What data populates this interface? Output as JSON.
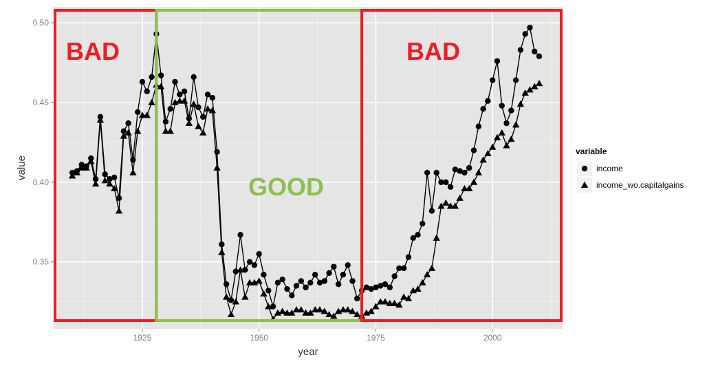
{
  "chart_data": {
    "type": "line",
    "xlabel": "year",
    "ylabel": "value",
    "xlim": [
      1906,
      2015
    ],
    "ylim": [
      0.308,
      0.51
    ],
    "x_ticks": [
      1925,
      1950,
      1975,
      2000
    ],
    "x_tick_labels": [
      "1925",
      "1950",
      "1975",
      "2000"
    ],
    "y_ticks": [
      0.35,
      0.4,
      0.45,
      0.5
    ],
    "y_tick_labels": [
      "0.35",
      "0.40",
      "0.45",
      "0.50"
    ],
    "grid": true,
    "legend": {
      "title": "variable",
      "placement": "right",
      "entries": [
        "income",
        "income_wo.capitalgains"
      ]
    },
    "colors": {
      "panel": "#e5e5e5",
      "grid": "#ffffff",
      "series": "#000000",
      "bad": "#ee1c24",
      "good": "#8dc04e"
    },
    "regions": [
      {
        "label": "BAD",
        "x_start": 1906,
        "x_end": 1928,
        "color": "#ee1c24"
      },
      {
        "label": "GOOD",
        "x_start": 1928,
        "x_end": 1972,
        "color": "#8dc04e"
      },
      {
        "label": "BAD",
        "x_start": 1972,
        "x_end": 2015,
        "color": "#ee1c24"
      }
    ],
    "x": [
      1910,
      1911,
      1912,
      1913,
      1914,
      1915,
      1916,
      1917,
      1918,
      1919,
      1920,
      1921,
      1922,
      1923,
      1924,
      1925,
      1926,
      1927,
      1928,
      1929,
      1930,
      1931,
      1932,
      1933,
      1934,
      1935,
      1936,
      1937,
      1938,
      1939,
      1940,
      1941,
      1942,
      1943,
      1944,
      1945,
      1946,
      1947,
      1948,
      1949,
      1950,
      1951,
      1952,
      1953,
      1954,
      1955,
      1956,
      1957,
      1958,
      1959,
      1960,
      1961,
      1962,
      1963,
      1964,
      1965,
      1966,
      1967,
      1968,
      1969,
      1970,
      1971,
      1972,
      1973,
      1974,
      1975,
      1976,
      1977,
      1978,
      1979,
      1980,
      1981,
      1982,
      1983,
      1984,
      1985,
      1986,
      1987,
      1988,
      1989,
      1990,
      1991,
      1992,
      1993,
      1994,
      1995,
      1996,
      1997,
      1998,
      1999,
      2000,
      2001,
      2002,
      2003,
      2004,
      2005,
      2006,
      2007,
      2008,
      2009,
      2010
    ],
    "series": [
      {
        "name": "income",
        "marker": "circle",
        "values": [
          0.406,
          0.407,
          0.411,
          0.41,
          0.415,
          0.402,
          0.441,
          0.405,
          0.402,
          0.403,
          0.39,
          0.432,
          0.437,
          0.414,
          0.444,
          0.463,
          0.457,
          0.466,
          0.493,
          0.467,
          0.438,
          0.446,
          0.463,
          0.455,
          0.457,
          0.44,
          0.466,
          0.447,
          0.441,
          0.455,
          0.453,
          0.419,
          0.361,
          0.336,
          0.326,
          0.344,
          0.367,
          0.345,
          0.35,
          0.348,
          0.355,
          0.342,
          0.332,
          0.322,
          0.337,
          0.339,
          0.333,
          0.329,
          0.335,
          0.338,
          0.334,
          0.337,
          0.342,
          0.337,
          0.338,
          0.343,
          0.347,
          0.336,
          0.342,
          0.348,
          0.338,
          0.327,
          0.332,
          0.334,
          0.333,
          0.334,
          0.335,
          0.336,
          0.334,
          0.341,
          0.346,
          0.346,
          0.353,
          0.365,
          0.367,
          0.374,
          0.406,
          0.382,
          0.406,
          0.4,
          0.4,
          0.397,
          0.408,
          0.407,
          0.406,
          0.409,
          0.42,
          0.435,
          0.446,
          0.451,
          0.464,
          0.476,
          0.448,
          0.437,
          0.445,
          0.464,
          0.483,
          0.493,
          0.497,
          0.482,
          0.479
        ]
      },
      {
        "name": "income_wo.capitalgains",
        "marker": "triangle",
        "values": [
          0.404,
          0.406,
          0.409,
          0.409,
          0.413,
          0.399,
          0.439,
          0.401,
          0.399,
          0.396,
          0.382,
          0.429,
          0.431,
          0.406,
          0.432,
          0.442,
          0.442,
          0.45,
          0.461,
          0.46,
          0.432,
          0.432,
          0.45,
          0.451,
          0.451,
          0.437,
          0.449,
          0.435,
          0.431,
          0.446,
          0.445,
          0.409,
          0.356,
          0.328,
          0.317,
          0.325,
          0.345,
          0.328,
          0.337,
          0.337,
          0.338,
          0.33,
          0.322,
          0.314,
          0.318,
          0.319,
          0.318,
          0.318,
          0.32,
          0.32,
          0.318,
          0.318,
          0.32,
          0.32,
          0.319,
          0.317,
          0.316,
          0.319,
          0.32,
          0.32,
          0.319,
          0.317,
          0.316,
          0.318,
          0.319,
          0.322,
          0.325,
          0.325,
          0.324,
          0.324,
          0.323,
          0.328,
          0.327,
          0.332,
          0.333,
          0.337,
          0.342,
          0.346,
          0.365,
          0.385,
          0.387,
          0.385,
          0.385,
          0.39,
          0.396,
          0.396,
          0.4,
          0.406,
          0.414,
          0.418,
          0.422,
          0.428,
          0.431,
          0.423,
          0.427,
          0.436,
          0.449,
          0.456,
          0.458,
          0.46,
          0.462
        ]
      }
    ]
  }
}
